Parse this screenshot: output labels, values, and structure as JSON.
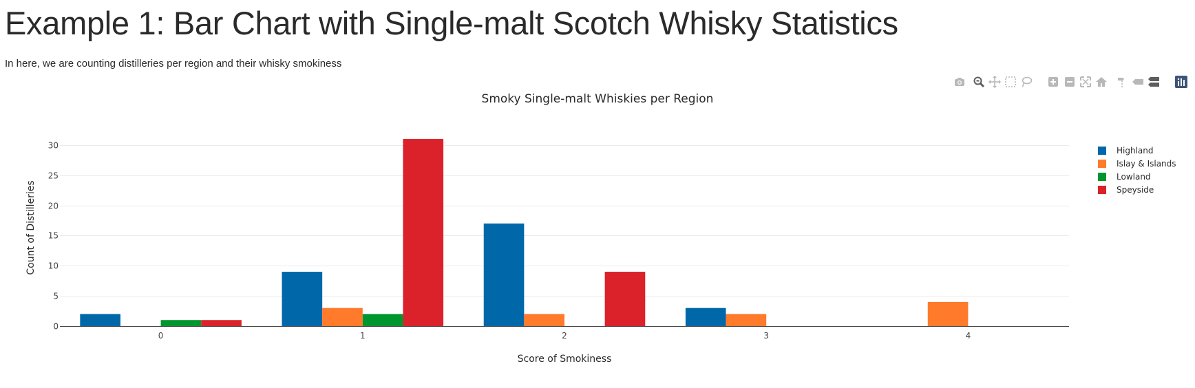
{
  "page": {
    "title": "Example 1: Bar Chart with Single-malt Scotch Whisky Statistics",
    "subtitle": "In here, we are counting distilleries per region and their whisky smokiness"
  },
  "modebar": [
    {
      "name": "camera-icon"
    },
    {
      "name": "zoom-icon"
    },
    {
      "name": "pan-icon"
    },
    {
      "name": "box-select-icon"
    },
    {
      "name": "lasso-select-icon"
    },
    {
      "name": "zoom-in-icon"
    },
    {
      "name": "zoom-out-icon"
    },
    {
      "name": "autoscale-icon"
    },
    {
      "name": "home-icon"
    },
    {
      "name": "spike-lines-icon"
    },
    {
      "name": "hover-closest-icon"
    },
    {
      "name": "hover-compare-icon"
    },
    {
      "name": "plotly-logo-icon"
    }
  ],
  "chart_data": {
    "type": "bar",
    "title": "Smoky Single-malt Whiskies per Region",
    "xlabel": "Score of Smokiness",
    "ylabel": "Count of Distilleries",
    "categories": [
      "0",
      "1",
      "2",
      "3",
      "4"
    ],
    "x": [
      0,
      1,
      2,
      3,
      4
    ],
    "yticks": [
      0,
      5,
      10,
      15,
      20,
      25,
      30
    ],
    "ylim": [
      0,
      32.6
    ],
    "grid": true,
    "legend_position": "right",
    "series": [
      {
        "name": "Highland",
        "color": "#0068a8",
        "values": [
          2,
          9,
          17,
          3,
          0
        ]
      },
      {
        "name": "Islay & Islands",
        "color": "#ff7a2a",
        "values": [
          0,
          3,
          2,
          2,
          4
        ]
      },
      {
        "name": "Lowland",
        "color": "#00962e",
        "values": [
          1,
          2,
          0,
          0,
          0
        ]
      },
      {
        "name": "Speyside",
        "color": "#db222a",
        "values": [
          1,
          31,
          9,
          0,
          0
        ]
      }
    ]
  }
}
